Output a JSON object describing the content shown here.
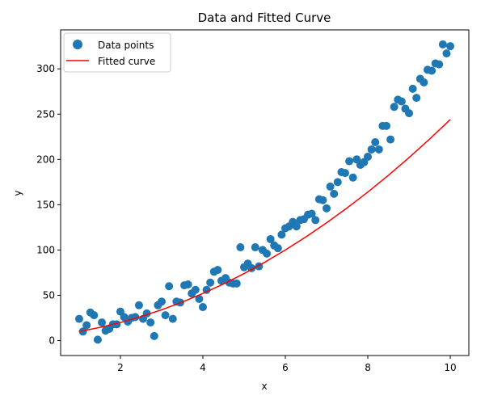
{
  "chart_data": {
    "type": "scatter",
    "title": "Data and Fitted Curve",
    "xlabel": "x",
    "ylabel": "y",
    "xlim": [
      0.55,
      10.45
    ],
    "ylim": [
      -16.5,
      343
    ],
    "x_ticks": [
      2,
      4,
      6,
      8,
      10
    ],
    "y_ticks": [
      0,
      50,
      100,
      150,
      200,
      250,
      300
    ],
    "grid": false,
    "legend_position": "top-left",
    "colors": {
      "points": "#1f77b4",
      "curve": "#ff0000"
    },
    "series": [
      {
        "name": "Data points",
        "kind": "scatter",
        "points": [
          [
            1.0,
            24
          ],
          [
            1.09,
            10
          ],
          [
            1.18,
            17
          ],
          [
            1.27,
            31
          ],
          [
            1.36,
            28
          ],
          [
            1.45,
            1
          ],
          [
            1.55,
            20
          ],
          [
            1.64,
            11
          ],
          [
            1.73,
            13
          ],
          [
            1.82,
            18
          ],
          [
            1.91,
            18
          ],
          [
            2.0,
            32
          ],
          [
            2.09,
            26
          ],
          [
            2.18,
            21
          ],
          [
            2.27,
            25
          ],
          [
            2.36,
            26
          ],
          [
            2.45,
            39
          ],
          [
            2.55,
            24
          ],
          [
            2.64,
            30
          ],
          [
            2.73,
            20
          ],
          [
            2.82,
            5
          ],
          [
            2.91,
            39
          ],
          [
            3.0,
            43
          ],
          [
            3.09,
            28
          ],
          [
            3.18,
            60
          ],
          [
            3.27,
            24
          ],
          [
            3.36,
            43
          ],
          [
            3.45,
            42
          ],
          [
            3.55,
            61
          ],
          [
            3.64,
            62
          ],
          [
            3.73,
            52
          ],
          [
            3.82,
            56
          ],
          [
            3.91,
            46
          ],
          [
            4.0,
            37
          ],
          [
            4.09,
            56
          ],
          [
            4.18,
            64
          ],
          [
            4.27,
            76
          ],
          [
            4.36,
            78
          ],
          [
            4.45,
            66
          ],
          [
            4.55,
            69
          ],
          [
            4.64,
            64
          ],
          [
            4.73,
            63
          ],
          [
            4.82,
            63
          ],
          [
            4.91,
            103
          ],
          [
            5.0,
            81
          ],
          [
            5.09,
            85
          ],
          [
            5.18,
            80
          ],
          [
            5.27,
            103
          ],
          [
            5.36,
            82
          ],
          [
            5.45,
            100
          ],
          [
            5.55,
            96
          ],
          [
            5.64,
            112
          ],
          [
            5.73,
            105
          ],
          [
            5.82,
            102
          ],
          [
            5.91,
            117
          ],
          [
            6.0,
            124
          ],
          [
            6.09,
            126
          ],
          [
            6.18,
            131
          ],
          [
            6.27,
            126
          ],
          [
            6.36,
            133
          ],
          [
            6.45,
            134
          ],
          [
            6.55,
            139
          ],
          [
            6.64,
            140
          ],
          [
            6.73,
            133
          ],
          [
            6.82,
            156
          ],
          [
            6.91,
            155
          ],
          [
            7.0,
            146
          ],
          [
            7.09,
            170
          ],
          [
            7.18,
            162
          ],
          [
            7.27,
            175
          ],
          [
            7.36,
            186
          ],
          [
            7.45,
            185
          ],
          [
            7.55,
            198
          ],
          [
            7.64,
            180
          ],
          [
            7.73,
            200
          ],
          [
            7.82,
            194
          ],
          [
            7.91,
            197
          ],
          [
            8.0,
            203
          ],
          [
            8.09,
            211
          ],
          [
            8.18,
            219
          ],
          [
            8.27,
            211
          ],
          [
            8.36,
            237
          ],
          [
            8.45,
            237
          ],
          [
            8.55,
            222
          ],
          [
            8.64,
            258
          ],
          [
            8.73,
            266
          ],
          [
            8.82,
            264
          ],
          [
            8.91,
            256
          ],
          [
            9.0,
            251
          ],
          [
            9.09,
            278
          ],
          [
            9.18,
            268
          ],
          [
            9.27,
            289
          ],
          [
            9.36,
            285
          ],
          [
            9.45,
            299
          ],
          [
            9.55,
            298
          ],
          [
            9.64,
            306
          ],
          [
            9.73,
            305
          ],
          [
            9.82,
            327
          ],
          [
            9.91,
            317
          ],
          [
            10.0,
            325
          ]
        ]
      },
      {
        "name": "Fitted curve",
        "kind": "line",
        "points": [
          [
            1.0,
            10
          ],
          [
            1.5,
            14.5
          ],
          [
            2.0,
            20
          ],
          [
            2.5,
            26.5
          ],
          [
            3.0,
            34
          ],
          [
            3.5,
            42.5
          ],
          [
            4.0,
            52
          ],
          [
            4.5,
            62.5
          ],
          [
            5.0,
            74
          ],
          [
            5.5,
            86.5
          ],
          [
            6.0,
            100
          ],
          [
            6.5,
            114.5
          ],
          [
            7.0,
            130
          ],
          [
            7.5,
            146.5
          ],
          [
            8.0,
            164
          ],
          [
            8.5,
            182.5
          ],
          [
            9.0,
            202
          ],
          [
            9.5,
            222.5
          ],
          [
            10.0,
            244
          ]
        ]
      }
    ]
  }
}
